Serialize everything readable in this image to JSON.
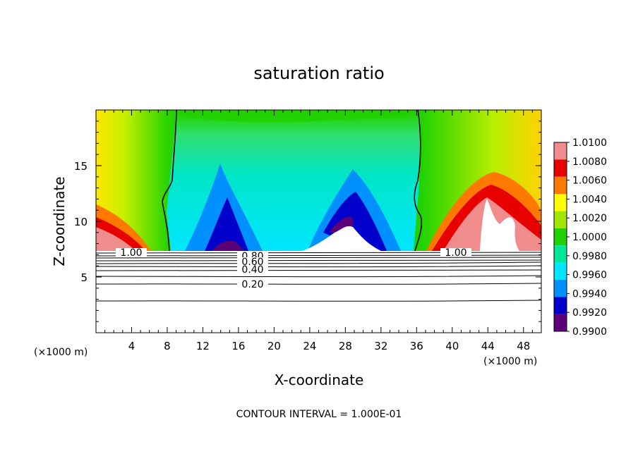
{
  "chart_data": {
    "type": "heatmap",
    "title": "saturation ratio",
    "xlabel": "X-coordinate",
    "ylabel": "Z-coordinate",
    "x_unit_left": "(×1000 m)",
    "x_unit_right": "(×1000 m)",
    "footer": "CONTOUR INTERVAL = 1.000E-01",
    "xlim": [
      0,
      50
    ],
    "ylim": [
      0,
      20
    ],
    "x_ticks": [
      4,
      8,
      12,
      16,
      20,
      24,
      28,
      32,
      36,
      40,
      44,
      48
    ],
    "y_ticks": [
      5,
      10,
      15
    ],
    "colorbar": {
      "min": 0.99,
      "max": 1.01,
      "levels": [
        "1.0100",
        "1.0080",
        "1.0060",
        "1.0040",
        "1.0020",
        "1.0000",
        "0.9980",
        "0.9960",
        "0.9940",
        "0.9920",
        "0.9900"
      ],
      "colors": [
        "#f08c8c",
        "#e60000",
        "#ff7800",
        "#ffff00",
        "#a0e600",
        "#22d200",
        "#00e69a",
        "#00e6ff",
        "#0090ff",
        "#0000cc",
        "#5a0078"
      ]
    },
    "contour_labels": [
      "1.00",
      "0.80",
      "0.60",
      "0.40",
      "0.20",
      "1.00"
    ],
    "contour_levels": [
      0.2,
      0.4,
      0.6,
      0.8,
      1.0
    ],
    "boundary_z": 7.3,
    "grid": false,
    "legend": "colorbar-right"
  }
}
